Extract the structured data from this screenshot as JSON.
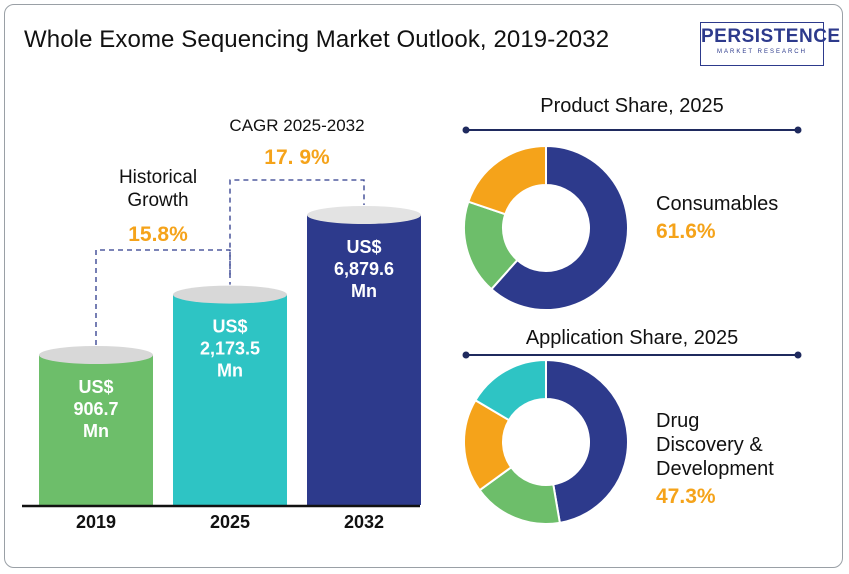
{
  "title": "Whole Exome Sequencing Market Outlook, 2019-2032",
  "logo": {
    "name": "PERSISTENCE",
    "tagline": "MARKET RESEARCH"
  },
  "colors": {
    "green": "#6dbe6a",
    "teal": "#2ec4c4",
    "navy": "#2d3a8c",
    "orange": "#f5a31a",
    "cap": "#d8d8d8",
    "text": "#111111"
  },
  "chart_data": [
    {
      "type": "bar",
      "categories": [
        "2019",
        "2025",
        "2032"
      ],
      "values": [
        906.7,
        2173.5,
        6879.6
      ],
      "value_labels": [
        [
          "US$",
          "906.7",
          "Mn"
        ],
        [
          "US$",
          "2,173.5",
          "Mn"
        ],
        [
          "US$",
          "6,879.6",
          "Mn"
        ]
      ],
      "annotations": {
        "historical": {
          "lines": [
            "Historical",
            "Growth"
          ],
          "value": "15.8%"
        },
        "cagr": {
          "label": "CAGR 2025-2032",
          "value": "17. 9%"
        }
      }
    },
    {
      "type": "pie",
      "title": "Product Share, 2025",
      "slices": [
        {
          "value": 61.6,
          "color": "#2d3a8c"
        },
        {
          "value": 18.6,
          "color": "#6dbe6a"
        },
        {
          "value": 19.8,
          "color": "#f5a31a"
        }
      ],
      "highlight": {
        "lines": [
          "Consumables"
        ],
        "value": "61.6%"
      }
    },
    {
      "type": "pie",
      "title": "Application Share, 2025",
      "slices": [
        {
          "value": 47.3,
          "color": "#2d3a8c"
        },
        {
          "value": 17.7,
          "color": "#6dbe6a"
        },
        {
          "value": 18.5,
          "color": "#f5a31a"
        },
        {
          "value": 16.5,
          "color": "#2ec4c4"
        }
      ],
      "highlight": {
        "lines": [
          "Drug",
          "Discovery &",
          "Development"
        ],
        "value": "47.3%"
      }
    }
  ]
}
